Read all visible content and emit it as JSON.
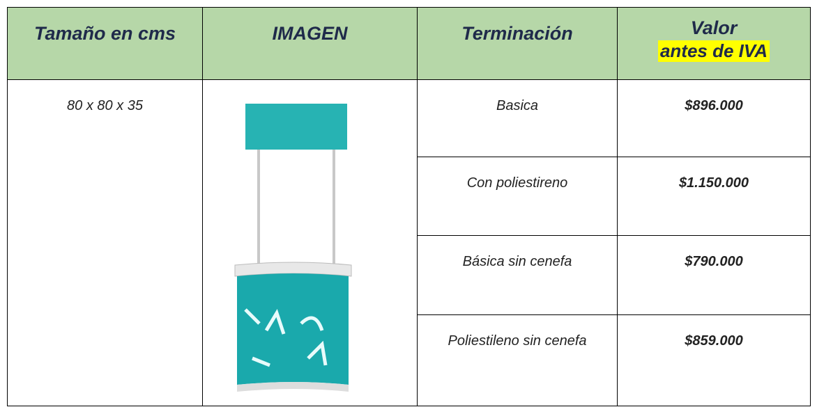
{
  "table": {
    "headers": [
      "Tamaño en cms",
      "IMAGEN",
      "Terminación",
      "Valor",
      "antes de IVA"
    ],
    "size": "80 x 80 x 35",
    "rows": [
      [
        "Basica",
        "$896.000"
      ],
      [
        "Con poliestireno",
        "$1.150.000"
      ],
      [
        "Básica sin cenefa",
        "$790.000"
      ],
      [
        "Poliestileno sin cenefa",
        "$859.000"
      ]
    ]
  }
}
